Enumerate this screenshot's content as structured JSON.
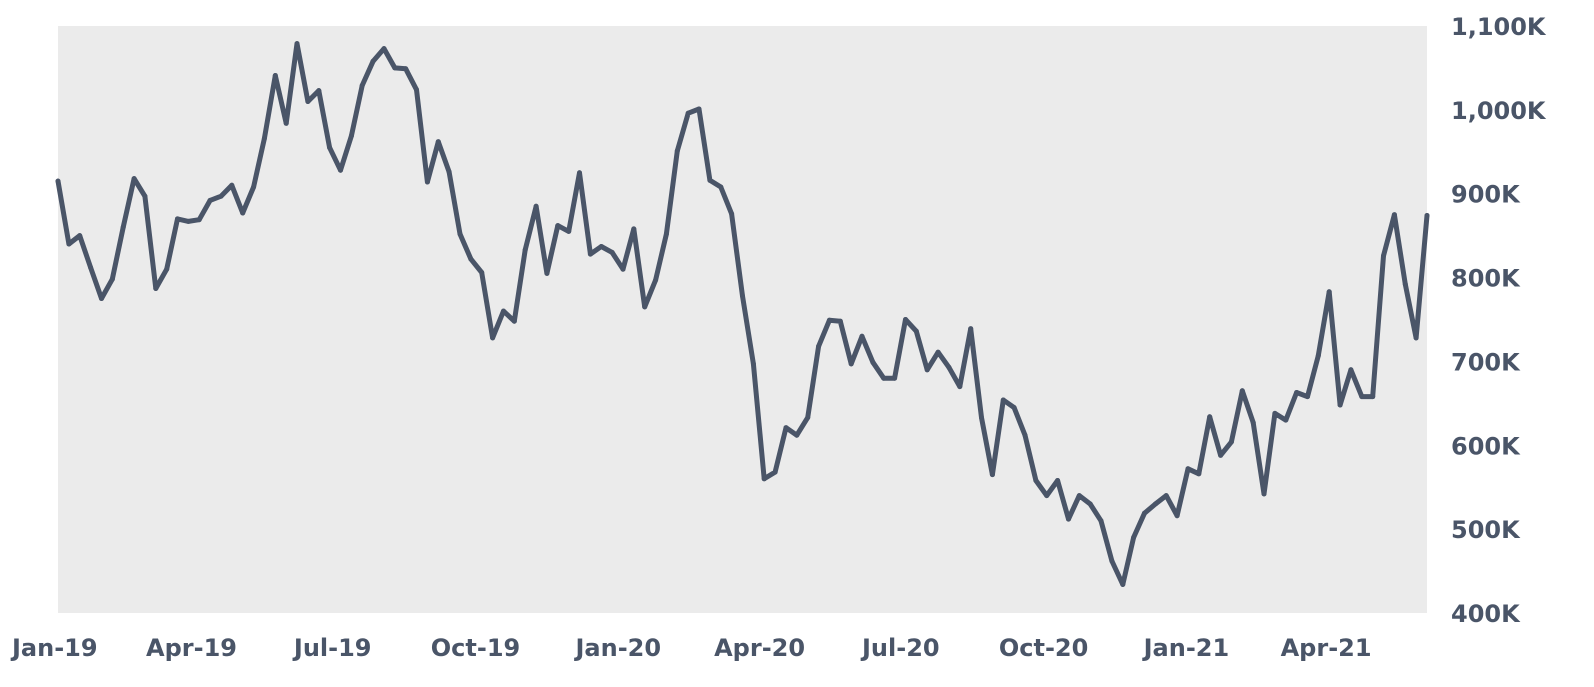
{
  "chart_data": {
    "type": "line",
    "title": "",
    "xlabel": "",
    "ylabel": "",
    "grid": false,
    "legend": "none",
    "ylim": [
      400000,
      1100000
    ],
    "x_range": [
      "2019-01-05",
      "2021-06-05"
    ],
    "x_ticks": [
      {
        "label": "Jan-19",
        "date": "2019-01-01"
      },
      {
        "label": "Apr-19",
        "date": "2019-04-01"
      },
      {
        "label": "Jul-19",
        "date": "2019-07-01"
      },
      {
        "label": "Oct-19",
        "date": "2019-10-01"
      },
      {
        "label": "Jan-20",
        "date": "2020-01-01"
      },
      {
        "label": "Apr-20",
        "date": "2020-04-01"
      },
      {
        "label": "Jul-20",
        "date": "2020-07-01"
      },
      {
        "label": "Oct-20",
        "date": "2020-10-01"
      },
      {
        "label": "Jan-21",
        "date": "2021-01-01"
      },
      {
        "label": "Apr-21",
        "date": "2021-04-01"
      }
    ],
    "y_ticks": [
      {
        "label": "1,100K",
        "value": 1100000
      },
      {
        "label": "1,000K",
        "value": 1000000
      },
      {
        "label": "900K",
        "value": 900000
      },
      {
        "label": "800K",
        "value": 800000
      },
      {
        "label": "700K",
        "value": 700000
      },
      {
        "label": "600K",
        "value": 600000
      },
      {
        "label": "500K",
        "value": 500000
      },
      {
        "label": "400K",
        "value": 400000
      }
    ],
    "series": [
      {
        "color": "#4a5568",
        "x": [
          "2019-01-05",
          "2019-01-12",
          "2019-01-19",
          "2019-01-26",
          "2019-02-02",
          "2019-02-09",
          "2019-02-16",
          "2019-02-23",
          "2019-03-02",
          "2019-03-09",
          "2019-03-16",
          "2019-03-23",
          "2019-03-30",
          "2019-04-06",
          "2019-04-13",
          "2019-04-20",
          "2019-04-27",
          "2019-05-04",
          "2019-05-11",
          "2019-05-18",
          "2019-05-25",
          "2019-06-01",
          "2019-06-08",
          "2019-06-15",
          "2019-06-22",
          "2019-06-29",
          "2019-07-06",
          "2019-07-13",
          "2019-07-20",
          "2019-07-27",
          "2019-08-03",
          "2019-08-10",
          "2019-08-17",
          "2019-08-24",
          "2019-08-31",
          "2019-09-07",
          "2019-09-14",
          "2019-09-21",
          "2019-09-28",
          "2019-10-05",
          "2019-10-12",
          "2019-10-19",
          "2019-10-26",
          "2019-11-02",
          "2019-11-09",
          "2019-11-16",
          "2019-11-23",
          "2019-11-30",
          "2019-12-07",
          "2019-12-14",
          "2019-12-21",
          "2019-12-28",
          "2020-01-04",
          "2020-01-11",
          "2020-01-18",
          "2020-01-25",
          "2020-02-01",
          "2020-02-08",
          "2020-02-15",
          "2020-02-22",
          "2020-02-29",
          "2020-03-07",
          "2020-03-14",
          "2020-03-21",
          "2020-03-28",
          "2020-04-04",
          "2020-04-11",
          "2020-04-18",
          "2020-04-25",
          "2020-05-02",
          "2020-05-09",
          "2020-05-16",
          "2020-05-23",
          "2020-05-30",
          "2020-06-06",
          "2020-06-13",
          "2020-06-20",
          "2020-06-27",
          "2020-07-04",
          "2020-07-11",
          "2020-07-18",
          "2020-07-25",
          "2020-08-01",
          "2020-08-08",
          "2020-08-15",
          "2020-08-22",
          "2020-08-29",
          "2020-09-05",
          "2020-09-12",
          "2020-09-19",
          "2020-09-26",
          "2020-10-03",
          "2020-10-10",
          "2020-10-17",
          "2020-10-24",
          "2020-10-31",
          "2020-11-07",
          "2020-11-14",
          "2020-11-21",
          "2020-11-28",
          "2020-12-05",
          "2020-12-12",
          "2020-12-19",
          "2020-12-26",
          "2021-01-02",
          "2021-01-09",
          "2021-01-16",
          "2021-01-23",
          "2021-01-30",
          "2021-02-06",
          "2021-02-13",
          "2021-02-20",
          "2021-02-27",
          "2021-03-06",
          "2021-03-13",
          "2021-03-20",
          "2021-03-27",
          "2021-04-03",
          "2021-04-10",
          "2021-04-17",
          "2021-04-24",
          "2021-05-01",
          "2021-05-08",
          "2021-05-15",
          "2021-05-22",
          "2021-05-29",
          "2021-06-05"
        ],
        "y": [
          915000,
          840000,
          850000,
          812000,
          775000,
          798000,
          860000,
          918000,
          897000,
          787000,
          810000,
          870000,
          867000,
          869000,
          892000,
          897000,
          910000,
          877000,
          908000,
          966000,
          1041000,
          984000,
          1079000,
          1010000,
          1023000,
          955000,
          928000,
          969000,
          1029000,
          1058000,
          1073000,
          1050000,
          1049000,
          1024000,
          914000,
          962000,
          926000,
          852000,
          822000,
          806000,
          728000,
          760000,
          748000,
          833000,
          885000,
          805000,
          862000,
          855000,
          925000,
          828000,
          837000,
          830000,
          810000,
          858000,
          765000,
          797000,
          852000,
          951000,
          996000,
          1001000,
          916000,
          908000,
          876000,
          778000,
          697000,
          560000,
          568000,
          621000,
          612000,
          633000,
          718000,
          749000,
          748000,
          697000,
          730000,
          699000,
          680000,
          680000,
          750000,
          736000,
          690000,
          711000,
          693000,
          670000,
          739000,
          633000,
          565000,
          654000,
          645000,
          612000,
          558000,
          540000,
          558000,
          512000,
          540000,
          530000,
          510000,
          462000,
          434000,
          490000,
          519000,
          530000,
          540000,
          516000,
          572000,
          566000,
          634000,
          588000,
          604000,
          665000,
          627000,
          542000,
          638000,
          630000,
          663000,
          658000,
          707000,
          783000,
          648000,
          690000,
          658000,
          658000,
          826000,
          875000,
          792000,
          728000,
          874000
        ]
      }
    ]
  }
}
